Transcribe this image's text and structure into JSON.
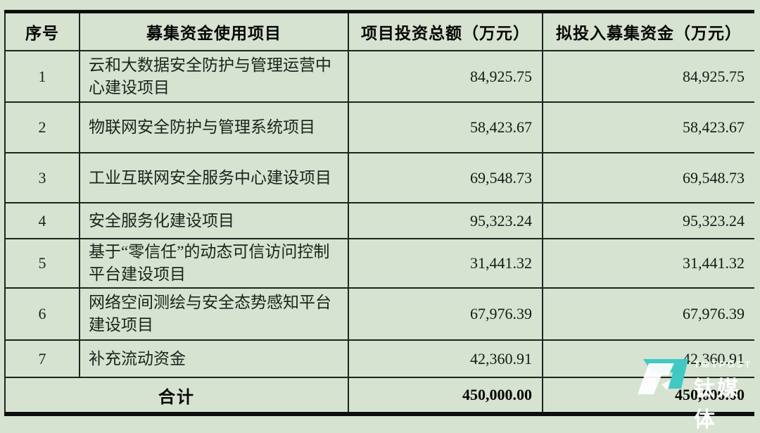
{
  "page": {
    "background": "#d5e3d0",
    "border_color": "#1f241f",
    "accent_teal": "#3fc9c2"
  },
  "table": {
    "headers": [
      "序号",
      "募集资金使用项目",
      "项目投资总额（万元）",
      "拟投入募集资金（万元）"
    ],
    "rows": [
      {
        "seq": "1",
        "project": "云和大数据安全防护与管理运营中心建设项目",
        "total": "84,925.75",
        "raised": "84,925.75"
      },
      {
        "seq": "2",
        "project": "物联网安全防护与管理系统项目",
        "total": "58,423.67",
        "raised": "58,423.67"
      },
      {
        "seq": "3",
        "project": "工业互联网安全服务中心建设项目",
        "total": "69,548.73",
        "raised": "69,548.73"
      },
      {
        "seq": "4",
        "project": "安全服务化建设项目",
        "total": "95,323.24",
        "raised": "95,323.24"
      },
      {
        "seq": "5",
        "project": "基于“零信任”的动态可信访问控制平台建设项目",
        "total": "31,441.32",
        "raised": "31,441.32"
      },
      {
        "seq": "6",
        "project": "网络空间测绘与安全态势感知平台建设项目",
        "total": "67,976.39",
        "raised": "67,976.39"
      },
      {
        "seq": "7",
        "project": "补充流动资金",
        "total": "42,360.91",
        "raised": "42,360.91"
      }
    ],
    "footer": {
      "label": "合计",
      "total": "450,000.00",
      "raised": "450,000.00"
    }
  },
  "watermark": {
    "brand": "TMTPOST",
    "brand_cn": "钛媒体"
  }
}
